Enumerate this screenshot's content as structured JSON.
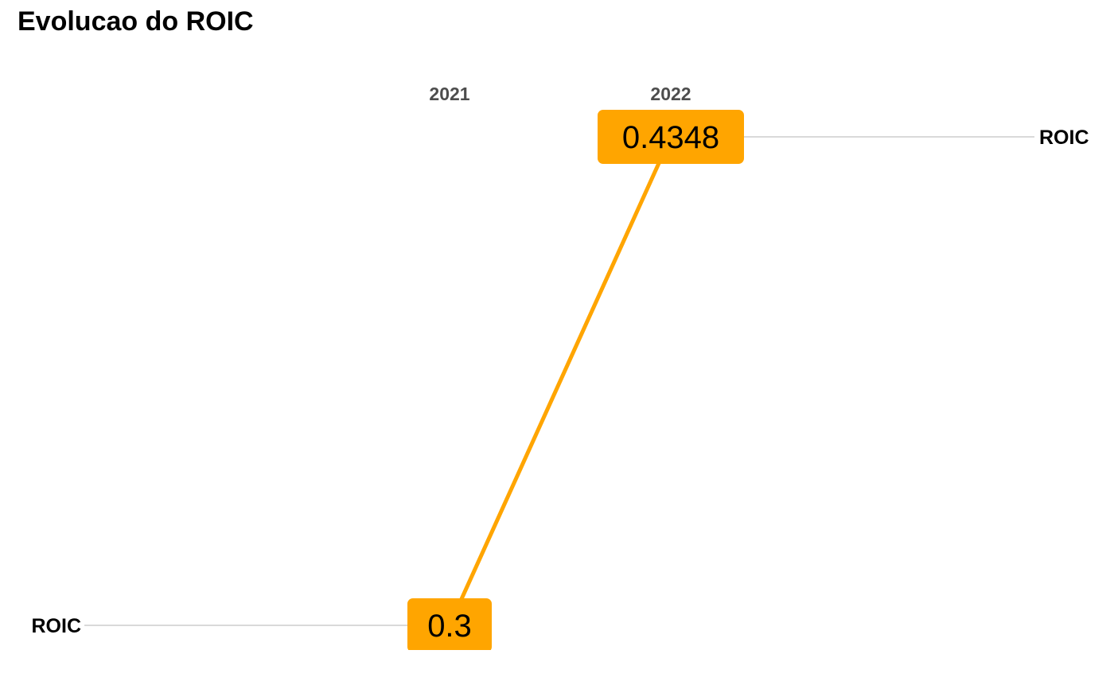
{
  "chart_data": {
    "type": "line",
    "title": "Evolucao do ROIC",
    "categories": [
      "2021",
      "2022"
    ],
    "series": [
      {
        "name": "ROIC",
        "values": [
          0.3,
          0.4348
        ],
        "value_labels": [
          "0.3",
          "0.4348"
        ],
        "color": "#FFA500"
      }
    ],
    "left_label": "ROIC",
    "right_label": "ROIC",
    "grid": false,
    "guide_line_color": "#d9d9d9"
  }
}
